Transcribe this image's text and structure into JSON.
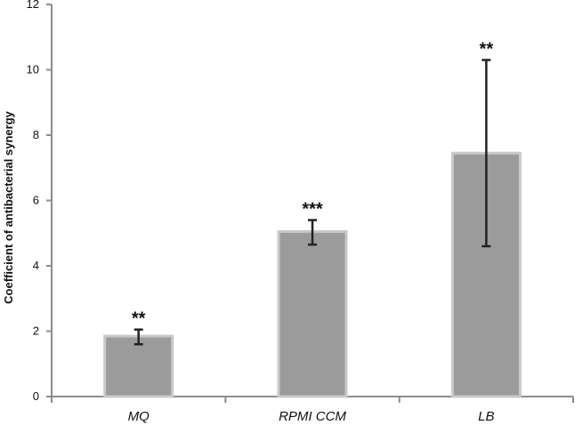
{
  "chart_data": {
    "type": "bar",
    "categories": [
      "MQ",
      "RPMI CCM",
      "LB"
    ],
    "values": [
      1.85,
      5.05,
      7.45
    ],
    "error_low": [
      1.6,
      4.65,
      4.6
    ],
    "error_high": [
      2.05,
      5.4,
      10.3
    ],
    "significance": [
      "**",
      "***",
      "**"
    ],
    "ylabel": "Coefficient of antibacterial synergy",
    "xlabel": "",
    "ylim": [
      0,
      12
    ],
    "yticks": [
      0,
      2,
      4,
      6,
      8,
      10,
      12
    ],
    "grid": false,
    "legend": "none",
    "colors": {
      "bar_fill": "#9b9b9b",
      "bar_edge": "#c9c9c9",
      "axis": "#8c8c8c",
      "error_bar": "#222222",
      "text": "#111111"
    }
  }
}
